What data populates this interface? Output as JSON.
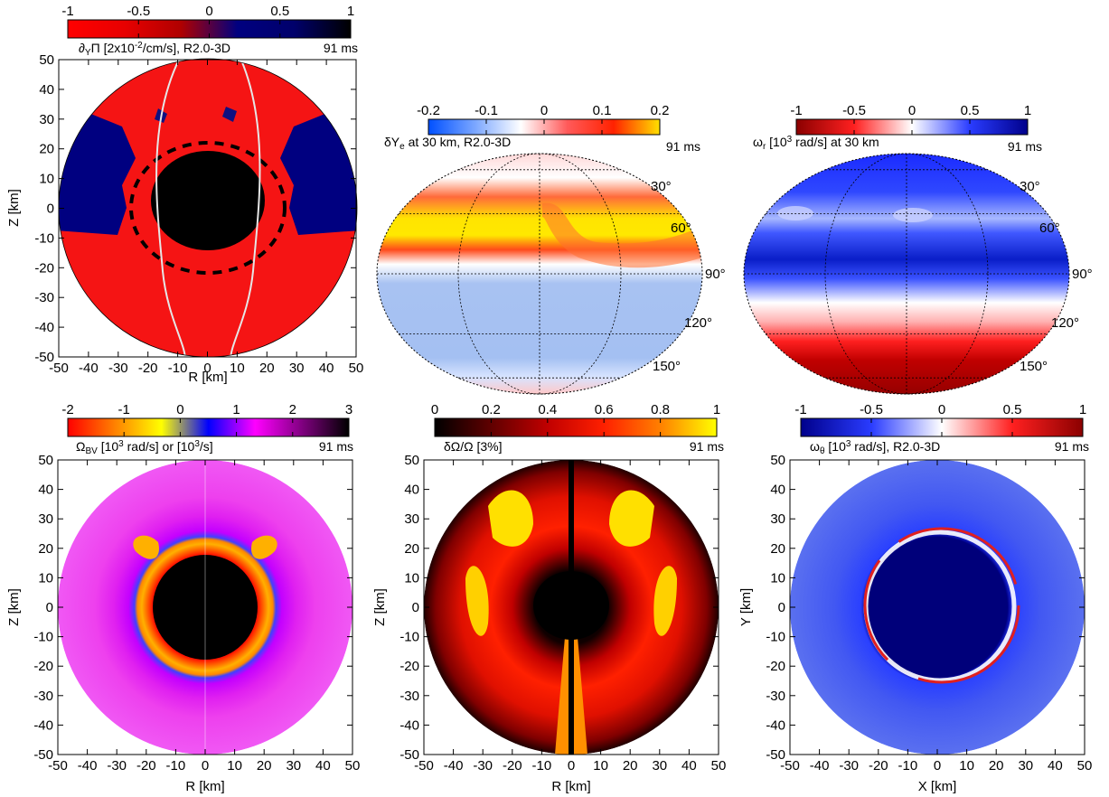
{
  "time_label": "91 ms",
  "chart_data": [
    {
      "type": "heatmap",
      "projection": "meridional disk",
      "title_parts": [
        "∂",
        "Y",
        "Π [2x10",
        "-2",
        "/cm/s], R2.0-3D"
      ],
      "xlabel": "R [km]",
      "ylabel": "Z [km]",
      "xlim": [
        -50,
        50
      ],
      "ylim": [
        -50,
        50
      ],
      "xticks": [
        "-50",
        "-40",
        "-30",
        "-20",
        "-10",
        "0",
        "10",
        "20",
        "30",
        "40",
        "50"
      ],
      "yticks": [
        "50",
        "40",
        "30",
        "20",
        "10",
        "0",
        "-10",
        "-20",
        "-30",
        "-40",
        "-50"
      ],
      "colorbar": {
        "range": [
          -1,
          1
        ],
        "ticks": [
          "-1",
          "-0.5",
          "0",
          "0.5",
          "1"
        ],
        "colors": [
          "#ff0000",
          "#e80000",
          "#b00000",
          "#000080",
          "#00006b",
          "#000000"
        ]
      },
      "features": {
        "background": "#ff1010",
        "core": "#000000",
        "outer_region": "#000080",
        "white_contour": "#e6e6e6"
      }
    },
    {
      "type": "heatmap",
      "projection": "aitoff",
      "title_parts": [
        "δY",
        "e",
        " at 30 km, R2.0-3D"
      ],
      "colorbar": {
        "range": [
          -0.2,
          0.2
        ],
        "ticks": [
          "-0.2",
          "-0.1",
          "0",
          "0.1",
          "0.2"
        ],
        "colors": [
          "#0050ff",
          "#7aa6ff",
          "#ffffff",
          "#ff5a5a",
          "#ff2200",
          "#ffe000"
        ]
      },
      "latitude_labels": [
        "30°",
        "60°",
        "90°",
        "120°",
        "150°"
      ]
    },
    {
      "type": "heatmap",
      "projection": "aitoff",
      "title_parts": [
        "ω",
        "r",
        " [10",
        "3",
        " rad/s] at 30 km"
      ],
      "colorbar": {
        "range": [
          -1,
          1
        ],
        "ticks": [
          "-1",
          "-0.5",
          "0",
          "0.5",
          "1"
        ],
        "colors": [
          "#8b0000",
          "#ff2020",
          "#ffffff",
          "#2a3cff",
          "#00008b"
        ]
      },
      "latitude_labels": [
        "30°",
        "60°",
        "90°",
        "120°",
        "150°"
      ]
    },
    {
      "type": "heatmap",
      "projection": "meridional disk",
      "title_parts": [
        "Ω",
        "BV",
        " [10",
        "3",
        " rad/s] or  [10",
        "3",
        "/s]"
      ],
      "xlabel": "R [km]",
      "ylabel": "Z [km]",
      "xlim": [
        -50,
        50
      ],
      "ylim": [
        -50,
        50
      ],
      "xticks": [
        "-50",
        "-40",
        "-30",
        "-20",
        "-10",
        "0",
        "10",
        "20",
        "30",
        "40",
        "50"
      ],
      "yticks": [
        "50",
        "40",
        "30",
        "20",
        "10",
        "0",
        "-10",
        "-20",
        "-30",
        "-40",
        "-50"
      ],
      "colorbar": {
        "range": [
          -2,
          3
        ],
        "ticks": [
          "-2",
          "-1",
          "0",
          "1",
          "2",
          "3"
        ],
        "colors": [
          "#ff0000",
          "#ff8000",
          "#ffff00",
          "#0000ff",
          "#ff00ff",
          "#800080",
          "#000000"
        ]
      }
    },
    {
      "type": "heatmap",
      "projection": "meridional disk",
      "title_parts": [
        "δΩ/Ω [3%]"
      ],
      "xlabel": "R [km]",
      "ylabel": "Z [km]",
      "xlim": [
        -50,
        50
      ],
      "ylim": [
        -50,
        50
      ],
      "xticks": [
        "-50",
        "-40",
        "-30",
        "-20",
        "-10",
        "0",
        "10",
        "20",
        "30",
        "40",
        "50"
      ],
      "yticks": [
        "50",
        "40",
        "30",
        "20",
        "10",
        "0",
        "-10",
        "-20",
        "-30",
        "-40",
        "-50"
      ],
      "colorbar": {
        "range": [
          0,
          1
        ],
        "ticks": [
          "0",
          "0.2",
          "0.4",
          "0.6",
          "0.8",
          "1"
        ],
        "colors": [
          "#000000",
          "#600000",
          "#c00000",
          "#ff2000",
          "#ff8000",
          "#ffff00"
        ]
      }
    },
    {
      "type": "heatmap",
      "projection": "equatorial disk",
      "title_parts": [
        "ω",
        "θ",
        " [10",
        "3",
        " rad/s], R2.0-3D"
      ],
      "xlabel": "X [km]",
      "ylabel": "Y [km]",
      "xlim": [
        -50,
        50
      ],
      "ylim": [
        -50,
        50
      ],
      "xticks": [
        "-50",
        "-40",
        "-30",
        "-20",
        "-10",
        "0",
        "10",
        "20",
        "30",
        "40",
        "50"
      ],
      "yticks": [
        "50",
        "40",
        "30",
        "20",
        "10",
        "0",
        "-10",
        "-20",
        "-30",
        "-40",
        "-50"
      ],
      "colorbar": {
        "range": [
          -1,
          1
        ],
        "ticks": [
          "-1",
          "-0.5",
          "0",
          "0.5",
          "1"
        ],
        "colors": [
          "#00008b",
          "#2a3cff",
          "#ffffff",
          "#ff2020",
          "#8b0000"
        ]
      }
    }
  ]
}
